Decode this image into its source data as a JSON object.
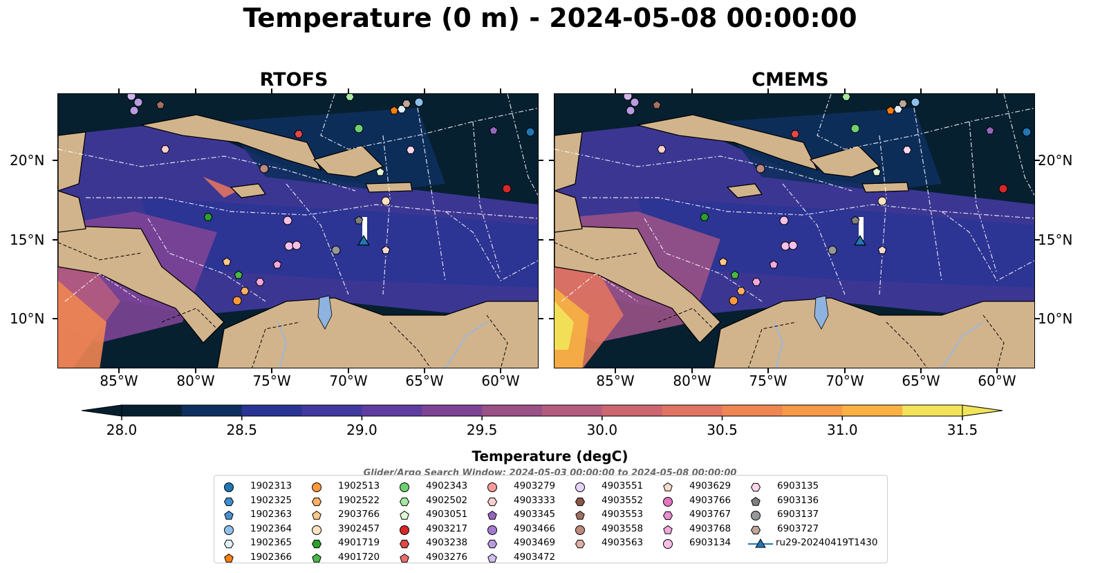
{
  "title": "Temperature (0 m) - 2024-05-08 00:00:00",
  "panels": [
    {
      "title": "RTOFS"
    },
    {
      "title": "CMEMS"
    }
  ],
  "lat_ticks": [
    "20°N",
    "15°N",
    "10°N"
  ],
  "lon_ticks": [
    "85°W",
    "80°W",
    "75°W",
    "70°W",
    "65°W",
    "60°W"
  ],
  "colorbar": {
    "ticks": [
      "28.0",
      "28.5",
      "29.0",
      "29.5",
      "30.0",
      "30.5",
      "31.0",
      "31.5"
    ],
    "min": 28.0,
    "max": 31.5,
    "step": 0.25,
    "extend": "both",
    "colors": [
      "#062030",
      "#0e2f5e",
      "#2a3495",
      "#42399f",
      "#5f3ca0",
      "#7d4496",
      "#995186",
      "#b45c7e",
      "#cc6670",
      "#e07462",
      "#ef8552",
      "#f59a46",
      "#f8b142",
      "#f5cc4a",
      "#f2e45a"
    ],
    "title": "Temperature (degC)"
  },
  "search_window": "Glider/Argo Search Window: 2024-05-03 00:00:00 to 2024-05-08 00:00:00",
  "legend": [
    [
      {
        "label": "1902313",
        "marker": "circle",
        "color": "#1f77b4"
      },
      {
        "label": "1902325",
        "marker": "hexagon",
        "color": "#3b8fd0"
      },
      {
        "label": "1902363",
        "marker": "pentagon",
        "color": "#4a8fd4"
      },
      {
        "label": "1902364",
        "marker": "circle",
        "color": "#8ec0ec"
      },
      {
        "label": "1902365",
        "marker": "hexagon",
        "color": "#dff0fb"
      },
      {
        "label": "1902366",
        "marker": "pentagon",
        "color": "#ff7f0e"
      }
    ],
    [
      {
        "label": "1902513",
        "marker": "circle",
        "color": "#ff9a3c"
      },
      {
        "label": "1902522",
        "marker": "hexagon",
        "color": "#ffb066"
      },
      {
        "label": "2903766",
        "marker": "pentagon",
        "color": "#ffc98a"
      },
      {
        "label": "3902457",
        "marker": "circle",
        "color": "#ffe2c2"
      },
      {
        "label": "4901719",
        "marker": "hexagon",
        "color": "#2ca02c"
      },
      {
        "label": "4901720",
        "marker": "pentagon",
        "color": "#48b848"
      }
    ],
    [
      {
        "label": "4902343",
        "marker": "circle",
        "color": "#6fd06f"
      },
      {
        "label": "4902502",
        "marker": "hexagon",
        "color": "#a6e8a0"
      },
      {
        "label": "4903051",
        "marker": "pentagon",
        "color": "#e2fbd6"
      },
      {
        "label": "4903217",
        "marker": "circle",
        "color": "#d62728"
      },
      {
        "label": "4903238",
        "marker": "hexagon",
        "color": "#e04848"
      },
      {
        "label": "4903276",
        "marker": "pentagon",
        "color": "#ec6f6f"
      }
    ],
    [
      {
        "label": "4903279",
        "marker": "circle",
        "color": "#f49a9a"
      },
      {
        "label": "4903333",
        "marker": "hexagon",
        "color": "#fbd0d0"
      },
      {
        "label": "4903345",
        "marker": "pentagon",
        "color": "#9467bd"
      },
      {
        "label": "4903466",
        "marker": "circle",
        "color": "#a37cd0"
      },
      {
        "label": "4903469",
        "marker": "hexagon",
        "color": "#b89be0"
      },
      {
        "label": "4903472",
        "marker": "pentagon",
        "color": "#d1bff0"
      }
    ],
    [
      {
        "label": "4903551",
        "marker": "circle",
        "color": "#e6d4f6"
      },
      {
        "label": "4903552",
        "marker": "hexagon",
        "color": "#8c564b"
      },
      {
        "label": "4903553",
        "marker": "pentagon",
        "color": "#a26f63"
      },
      {
        "label": "4903558",
        "marker": "circle",
        "color": "#bd8b7e"
      },
      {
        "label": "4903563",
        "marker": "hexagon",
        "color": "#dbb0a4"
      }
    ],
    [
      {
        "label": "4903629",
        "marker": "pentagon",
        "color": "#f6dccf"
      },
      {
        "label": "4903766",
        "marker": "circle",
        "color": "#e377c2"
      },
      {
        "label": "4903767",
        "marker": "hexagon",
        "color": "#ea8fd0"
      },
      {
        "label": "4903768",
        "marker": "pentagon",
        "color": "#f3a9dd"
      },
      {
        "label": "6903134",
        "marker": "circle",
        "color": "#f7c0e6"
      }
    ],
    [
      {
        "label": "6903135",
        "marker": "hexagon",
        "color": "#fbd7ee"
      },
      {
        "label": "6903136",
        "marker": "pentagon",
        "color": "#7f7f7f"
      },
      {
        "label": "6903137",
        "marker": "circle",
        "color": "#979797"
      },
      {
        "label": "6903727",
        "marker": "hexagon",
        "color": "#bfa59a"
      },
      {
        "label": "ru29-20240419T1430",
        "marker": "triangle-line",
        "color": "#1f77b4"
      }
    ]
  ]
}
